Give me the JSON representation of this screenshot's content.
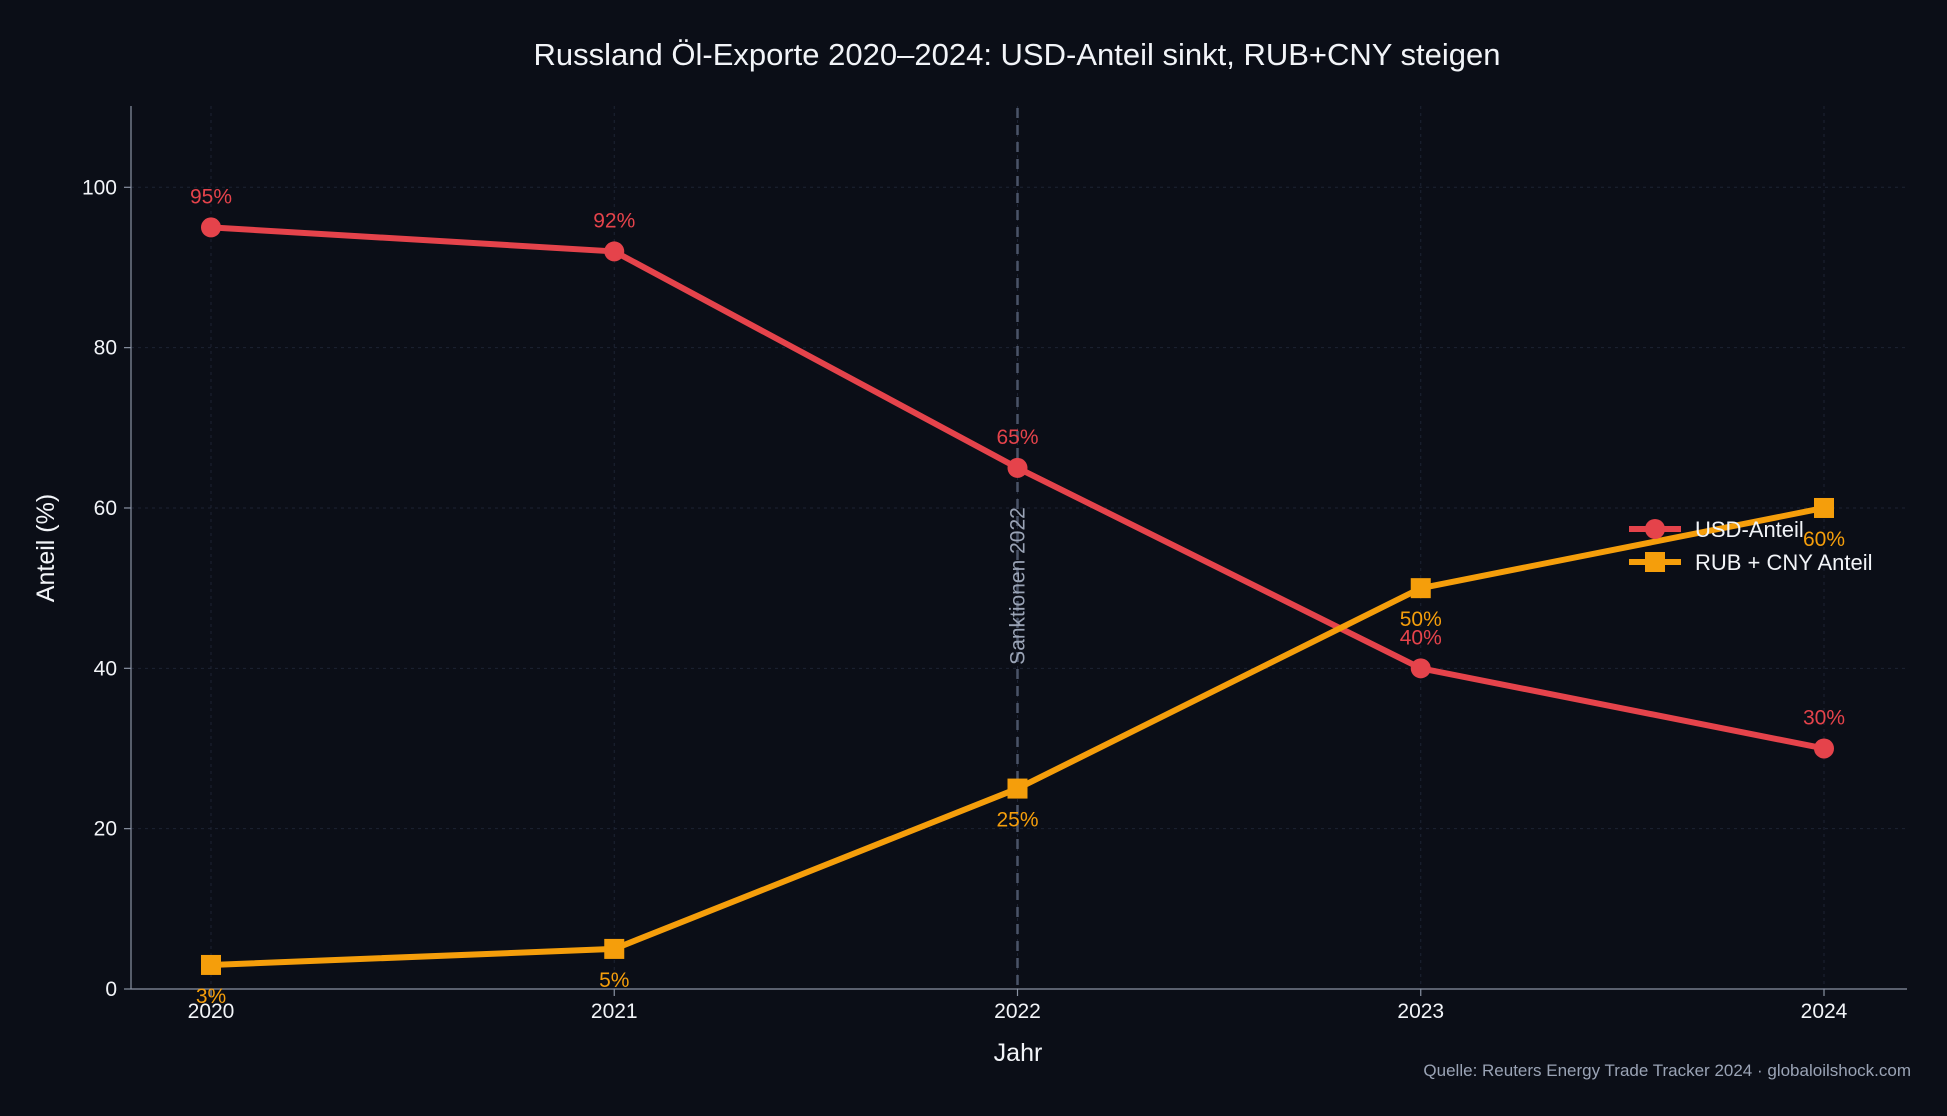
{
  "chart_data": {
    "type": "line",
    "title": "Russland Öl-Exporte 2020–2024: USD-Anteil sinkt, RUB+CNY steigen",
    "xlabel": "Jahr",
    "ylabel": "Anteil (%)",
    "x": [
      2020,
      2021,
      2022,
      2023,
      2024
    ],
    "x_tick_labels": [
      "2020",
      "2021",
      "2022",
      "2023",
      "2024"
    ],
    "ylim": [
      0,
      110
    ],
    "y_ticks": [
      0,
      20,
      40,
      60,
      80,
      100
    ],
    "y_tick_labels": [
      "0",
      "20",
      "40",
      "60",
      "80",
      "100"
    ],
    "grid": true,
    "legend_position": "center-right",
    "series": [
      {
        "name": "USD-Anteil",
        "values": [
          95,
          92,
          65,
          40,
          30
        ],
        "labels": [
          "95%",
          "92%",
          "65%",
          "40%",
          "30%"
        ],
        "color": "#e5434b",
        "marker": "circle"
      },
      {
        "name": "RUB + CNY Anteil",
        "values": [
          3,
          5,
          25,
          50,
          60
        ],
        "labels": [
          "3%",
          "5%",
          "25%",
          "50%",
          "60%"
        ],
        "color": "#f59e0b",
        "marker": "square"
      }
    ],
    "annotations": [
      {
        "x": 2022,
        "text": "Sanktionen 2022",
        "style": "dashed-vertical-line"
      }
    ],
    "source": "Quelle: Reuters Energy Trade Tracker 2024 · globaloilshock.com"
  }
}
